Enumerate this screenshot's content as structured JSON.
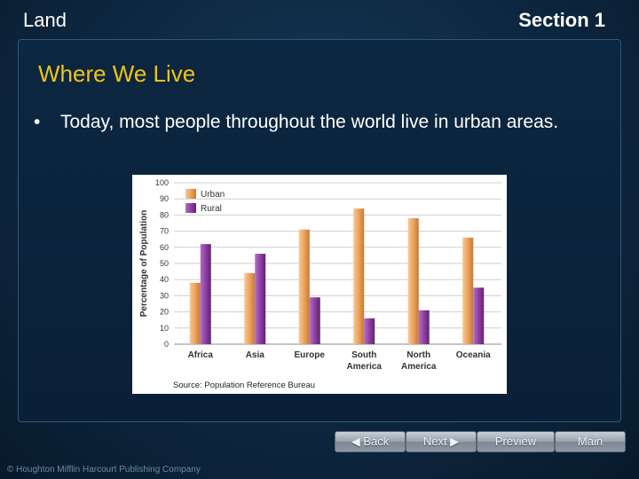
{
  "header": {
    "left": "Land",
    "right": "Section 1"
  },
  "slide": {
    "title": "Where We Live",
    "bullet_symbol": "•",
    "bullet": "Today, most people throughout the world live in urban areas."
  },
  "chart_data": {
    "type": "bar",
    "categories": [
      [
        "Africa"
      ],
      [
        "Asia"
      ],
      [
        "Europe"
      ],
      [
        "South",
        "America"
      ],
      [
        "North",
        "America"
      ],
      [
        "Oceania"
      ]
    ],
    "series": [
      {
        "name": "Urban",
        "values": [
          38,
          44,
          71,
          84,
          78,
          66
        ],
        "color": "#eda25a"
      },
      {
        "name": "Rural",
        "values": [
          62,
          56,
          29,
          16,
          21,
          35
        ],
        "color": "#8e3fa3"
      }
    ],
    "ylabel": "Percentage of Population",
    "ylim": [
      0,
      100
    ],
    "yticks": [
      0,
      10,
      20,
      30,
      40,
      50,
      60,
      70,
      80,
      90,
      100
    ],
    "grid": true,
    "legend": "top-left",
    "source": "Source: Population Reference Bureau"
  },
  "nav": {
    "back": "Back",
    "next": "Next",
    "preview": "Preview",
    "main": "Main"
  },
  "footer": "© Houghton Mifflin Harcourt Publishing Company"
}
